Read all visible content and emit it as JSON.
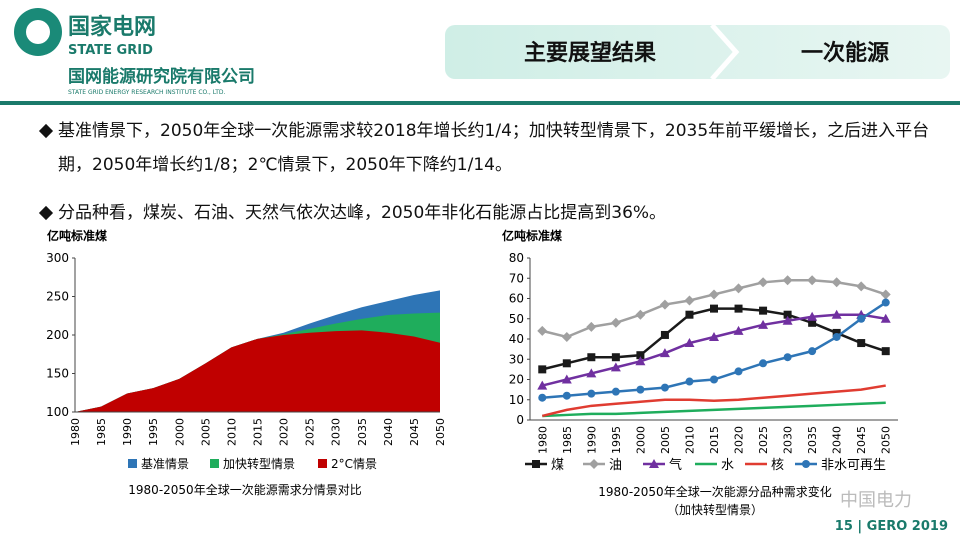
{
  "header": {
    "logo_cn": "国家电网",
    "logo_en": "STATE GRID",
    "org_cn": "国网能源研究院有限公司",
    "org_en": "STATE GRID ENERGY RESEARCH INSTITUTE CO., LTD.",
    "tab_1": "主要展望结果",
    "tab_2": "一次能源"
  },
  "bullets": [
    "基准情景下，2050年全球一次能源需求较2018年增长约1/4；加快转型情景下，2035年前平缓增长，之后进入平台期，2050年增长约1/8；2℃情景下，2050年下降约1/14。",
    "分品种看，煤炭、石油、天然气依次达峰，2050年非化石能源占比提高到36%。"
  ],
  "chart_data": [
    {
      "type": "area",
      "y_label": "亿吨标准煤",
      "caption": "1980-2050年全球一次能源需求分情景对比",
      "categories": [
        "1980",
        "1985",
        "1990",
        "1995",
        "2000",
        "2005",
        "2010",
        "2015",
        "2020",
        "2025",
        "2030",
        "2035",
        "2040",
        "2045",
        "2050"
      ],
      "ylim": [
        100,
        300
      ],
      "yticks": [
        100,
        150,
        200,
        250,
        300
      ],
      "series": [
        {
          "name": "基准情景",
          "color": "#2e75b6",
          "values": [
            100,
            107,
            124,
            131,
            143,
            163,
            184,
            195,
            203,
            215,
            226,
            236,
            244,
            252,
            258
          ]
        },
        {
          "name": "加快转型情景",
          "color": "#1fad5c",
          "values": [
            100,
            107,
            124,
            131,
            143,
            163,
            184,
            195,
            201,
            208,
            215,
            221,
            226,
            228,
            229
          ]
        },
        {
          "name": "2°C情景",
          "color": "#c00000",
          "values": [
            100,
            107,
            124,
            131,
            143,
            163,
            184,
            195,
            200,
            203,
            205,
            206,
            203,
            198,
            190
          ]
        }
      ]
    },
    {
      "type": "line",
      "y_label": "亿吨标准煤",
      "caption": "1980-2050年全球一次能源分品种需求变化",
      "caption_2": "（加快转型情景）",
      "categories": [
        "1980",
        "1985",
        "1990",
        "1995",
        "2000",
        "2005",
        "2010",
        "2015",
        "2020",
        "2025",
        "2030",
        "2035",
        "2040",
        "2045",
        "2050"
      ],
      "ylim": [
        0,
        80
      ],
      "yticks": [
        0,
        10,
        20,
        30,
        40,
        50,
        60,
        70,
        80
      ],
      "series": [
        {
          "name": "煤",
          "color": "#1a1a1a",
          "marker": "square",
          "values": [
            25,
            28,
            31,
            31,
            32,
            42,
            52,
            55,
            55,
            54,
            52,
            48,
            43,
            38,
            34
          ]
        },
        {
          "name": "油",
          "color": "#a0a0a0",
          "marker": "diamond",
          "values": [
            44,
            41,
            46,
            48,
            52,
            57,
            59,
            62,
            65,
            68,
            69,
            69,
            68,
            66,
            62
          ]
        },
        {
          "name": "气",
          "color": "#7030a0",
          "marker": "triangle",
          "values": [
            17,
            20,
            23,
            26,
            29,
            33,
            38,
            41,
            44,
            47,
            49,
            51,
            52,
            52,
            50
          ]
        },
        {
          "name": "水",
          "color": "#1fad5c",
          "marker": "none",
          "values": [
            2,
            2.5,
            3,
            3,
            3.5,
            4,
            4.5,
            5,
            5.5,
            6,
            6.5,
            7,
            7.5,
            8,
            8.5
          ]
        },
        {
          "name": "核",
          "color": "#e03c31",
          "marker": "none",
          "values": [
            2,
            5,
            7,
            8,
            9,
            10,
            10,
            9.5,
            10,
            11,
            12,
            13,
            14,
            15,
            17
          ]
        },
        {
          "name": "非水可再生",
          "color": "#2e75b6",
          "marker": "circle",
          "values": [
            11,
            12,
            13,
            14,
            15,
            16,
            19,
            20,
            24,
            28,
            31,
            34,
            41,
            50,
            58
          ]
        }
      ]
    }
  ],
  "footer": {
    "page": "15 | GERO 2019",
    "watermark": "中国电力"
  }
}
